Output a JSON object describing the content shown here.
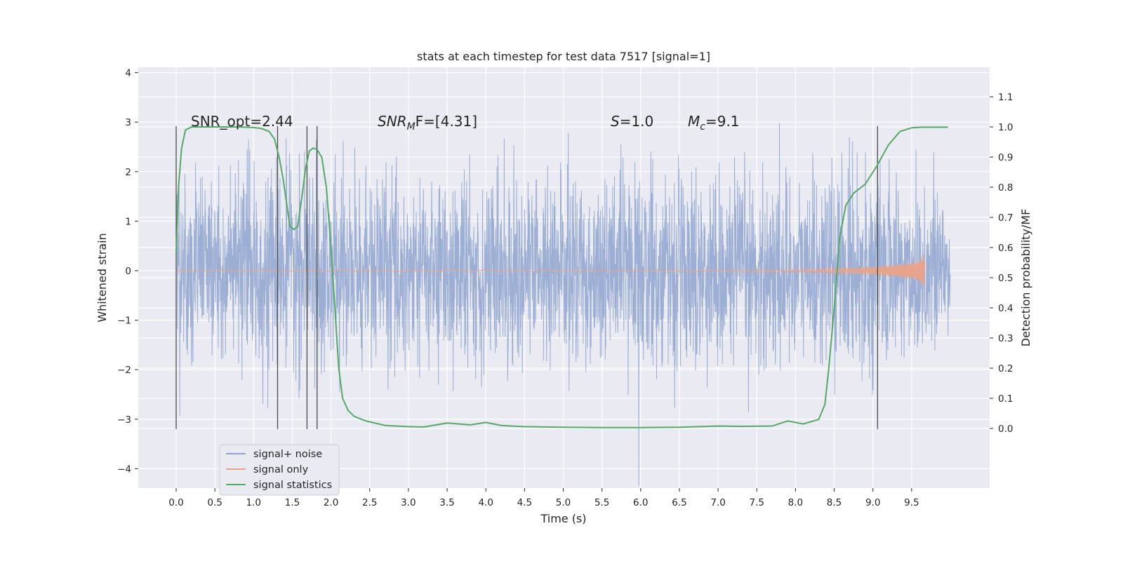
{
  "chart_data": {
    "type": "line",
    "title": "stats at each timestep for test data 7517 [signal=1]",
    "xlabel": "Time (s)",
    "ylabel": "Whitened strain",
    "ylabel_right": "Detection probability/MF",
    "xlim": [
      -0.5,
      10.5
    ],
    "ylim": [
      -4.4,
      4.1
    ],
    "ylim_right": [
      -0.2,
      1.2
    ],
    "x_ticks": [
      "0.0",
      "0.5",
      "1.0",
      "1.5",
      "2.0",
      "2.5",
      "3.0",
      "3.5",
      "4.0",
      "4.5",
      "5.0",
      "5.5",
      "6.0",
      "6.5",
      "7.0",
      "7.5",
      "8.0",
      "8.5",
      "9.0",
      "9.5"
    ],
    "y_ticks_left": [
      "4",
      "3",
      "2",
      "1",
      "0",
      "−1",
      "−2",
      "−3",
      "−4"
    ],
    "y_ticks_right": [
      "1.1",
      "1.0",
      "0.9",
      "0.8",
      "0.7",
      "0.6",
      "0.5",
      "0.4",
      "0.3",
      "0.2",
      "0.1",
      "0.0"
    ],
    "grid": true,
    "legend_position": "lower-left",
    "annotations": {
      "snr_opt": "SNR_opt=2.44",
      "snr_mf_label": "SNR",
      "snr_mf_sub": "M",
      "snr_mf_rest": "F=[4.31]",
      "s_label": "S",
      "s_rest": "=1.0",
      "mc_label": "M",
      "mc_sub": "c",
      "mc_rest": "=9.1"
    },
    "vertical_markers_x": [
      0.0,
      1.31,
      1.69,
      1.82,
      9.06
    ],
    "series": [
      {
        "name": "signal+ noise",
        "color": "#8ea3cf",
        "description_values": {
          "x_range": [
            0.0,
            10.0
          ],
          "y_min": -4.4,
          "y_max": 3.78
        }
      },
      {
        "name": "signal only",
        "color": "#e8a48a",
        "envelope": {
          "x": [
            0.0,
            6.0,
            7.0,
            8.0,
            8.5,
            9.0,
            9.3,
            9.5,
            9.6,
            9.66,
            9.67
          ],
          "amplitude": [
            0.01,
            0.015,
            0.02,
            0.03,
            0.05,
            0.08,
            0.12,
            0.16,
            0.22,
            0.35,
            0.0
          ]
        }
      },
      {
        "name": "signal statistics",
        "color": "#55a868",
        "x": [
          0.0,
          0.03,
          0.07,
          0.12,
          0.2,
          0.3,
          0.5,
          0.8,
          1.0,
          1.1,
          1.2,
          1.27,
          1.33,
          1.38,
          1.43,
          1.47,
          1.52,
          1.57,
          1.62,
          1.67,
          1.72,
          1.77,
          1.82,
          1.88,
          1.94,
          2.0,
          2.05,
          2.1,
          2.15,
          2.22,
          2.3,
          2.45,
          2.7,
          3.0,
          3.2,
          3.5,
          3.8,
          4.0,
          4.2,
          4.5,
          5.0,
          5.5,
          6.0,
          6.5,
          7.0,
          7.3,
          7.7,
          7.9,
          8.1,
          8.3,
          8.38,
          8.43,
          8.5,
          8.57,
          8.65,
          8.75,
          8.9,
          9.05,
          9.2,
          9.35,
          9.5,
          9.65,
          9.8,
          9.97
        ],
        "y": [
          0.58,
          0.8,
          0.93,
          0.99,
          1.0,
          1.0,
          1.0,
          1.0,
          0.998,
          0.995,
          0.985,
          0.96,
          0.9,
          0.83,
          0.74,
          0.67,
          0.66,
          0.67,
          0.76,
          0.86,
          0.92,
          0.93,
          0.925,
          0.9,
          0.8,
          0.6,
          0.4,
          0.2,
          0.1,
          0.06,
          0.04,
          0.025,
          0.01,
          0.006,
          0.005,
          0.018,
          0.012,
          0.02,
          0.01,
          0.006,
          0.004,
          0.003,
          0.003,
          0.004,
          0.008,
          0.007,
          0.008,
          0.025,
          0.015,
          0.03,
          0.08,
          0.2,
          0.4,
          0.63,
          0.74,
          0.78,
          0.81,
          0.87,
          0.94,
          0.985,
          0.997,
          0.999,
          0.999,
          0.999
        ]
      }
    ]
  }
}
